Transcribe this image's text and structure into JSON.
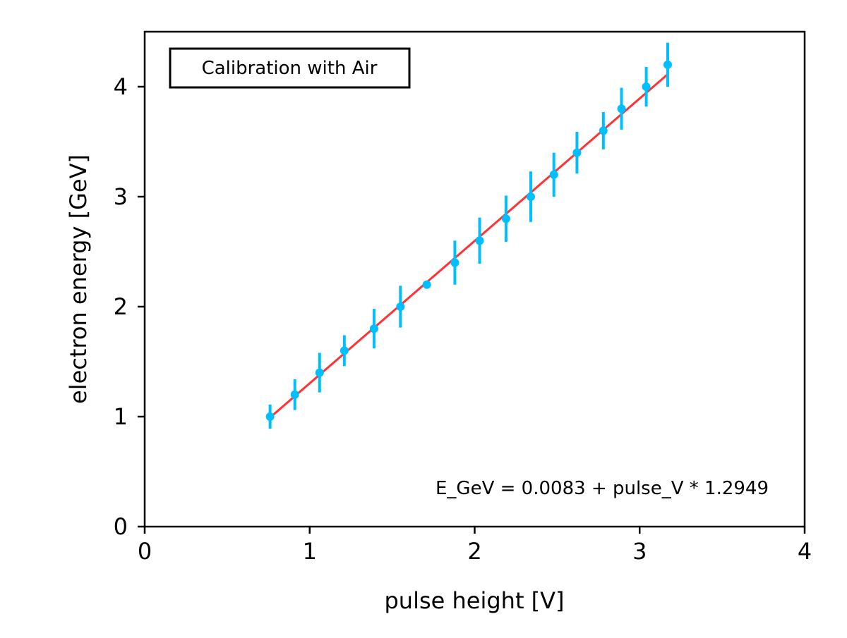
{
  "chart_data": {
    "type": "scatter",
    "xlabel": "pulse height [V]",
    "ylabel": "electron energy [GeV]",
    "xlim": [
      0,
      4
    ],
    "ylim": [
      0,
      4.5
    ],
    "x_ticks": [
      "0",
      "1",
      "2",
      "3",
      "4"
    ],
    "y_ticks": [
      "0",
      "1",
      "2",
      "3",
      "4"
    ],
    "grid": false,
    "legend_box": "Calibration with Air",
    "legend_position": "top-left",
    "annotation": "E_GeV = 0.0083 + pulse_V * 1.2949",
    "annotation_position": "bottom-right",
    "series": [
      {
        "kind": "points-with-error-bars",
        "x": [
          0.76,
          0.91,
          1.06,
          1.21,
          1.39,
          1.55,
          1.71,
          1.88,
          2.03,
          2.19,
          2.34,
          2.48,
          2.62,
          2.78,
          2.89,
          3.04,
          3.17
        ],
        "y": [
          1.0,
          1.2,
          1.4,
          1.6,
          1.8,
          2.0,
          2.2,
          2.4,
          2.6,
          2.8,
          3.0,
          3.2,
          3.4,
          3.6,
          3.8,
          4.0,
          4.2
        ],
        "yerr": [
          0.11,
          0.14,
          0.18,
          0.14,
          0.18,
          0.19,
          0.02,
          0.2,
          0.21,
          0.21,
          0.23,
          0.2,
          0.19,
          0.17,
          0.19,
          0.18,
          0.2
        ]
      },
      {
        "kind": "fit-line",
        "intercept": 0.0083,
        "slope": 1.2949,
        "x_range": [
          0.76,
          3.17
        ]
      }
    ],
    "colors": {
      "points": "#00bfff",
      "fit_line": "#ff3333",
      "axes": "#000000"
    }
  }
}
